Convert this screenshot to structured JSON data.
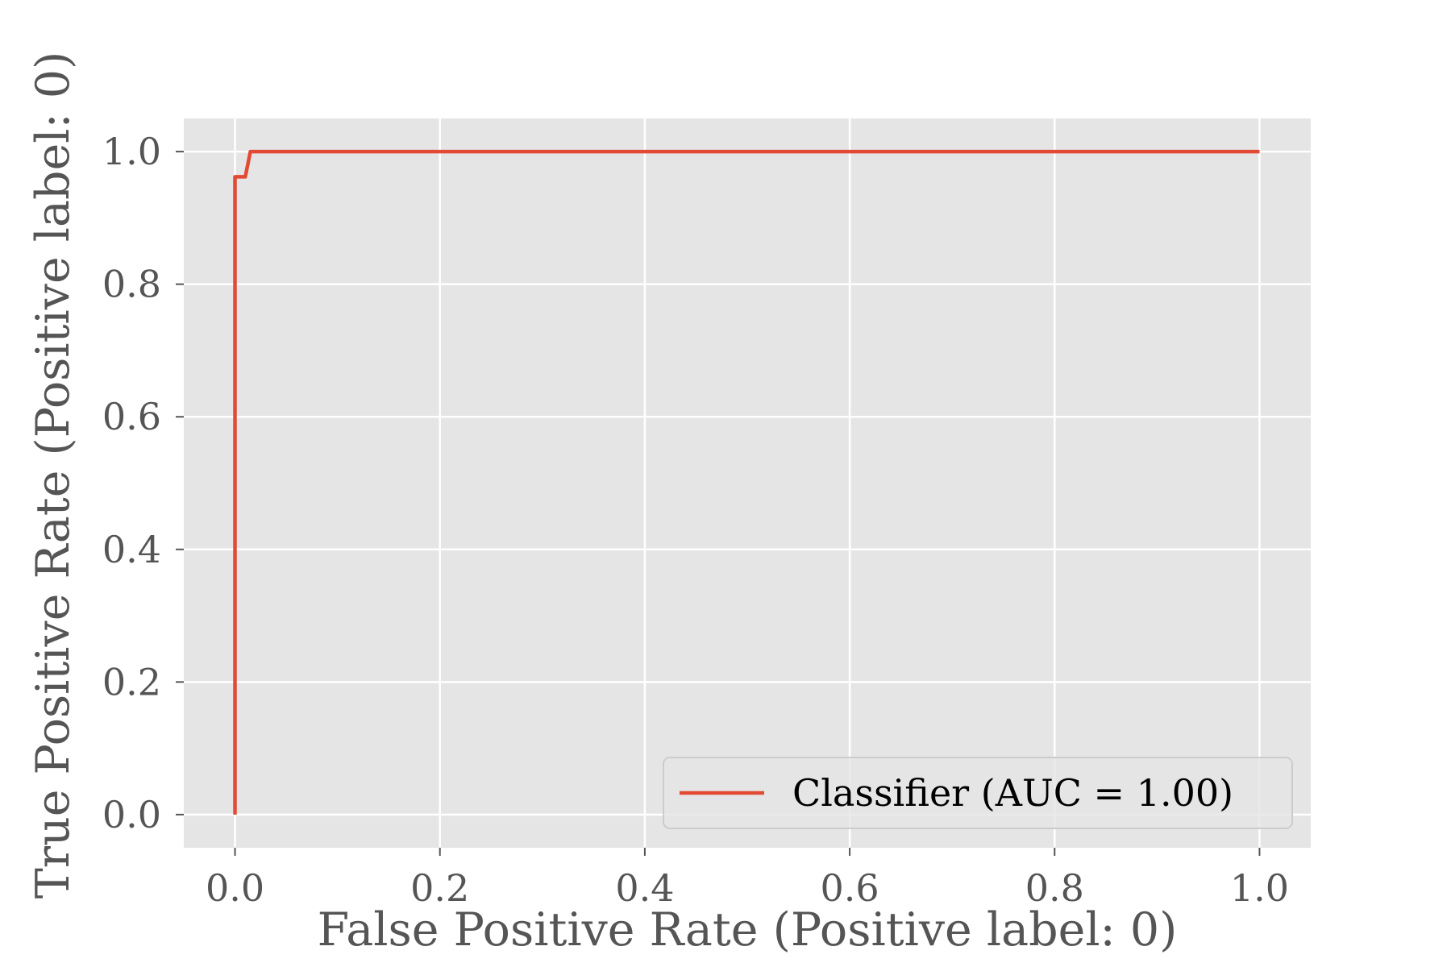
{
  "chart_data": {
    "type": "line",
    "title": "",
    "xlabel": "False Positive Rate (Positive label: 0)",
    "ylabel": "True Positive Rate (Positive label: 0)",
    "xlim": [
      -0.05,
      1.05
    ],
    "ylim": [
      -0.05,
      1.05
    ],
    "xticks": [
      "0.0",
      "0.2",
      "0.4",
      "0.6",
      "0.8",
      "1.0"
    ],
    "yticks": [
      "0.0",
      "0.2",
      "0.4",
      "0.6",
      "0.8",
      "1.0"
    ],
    "grid": true,
    "legend_position": "lower-right",
    "series": [
      {
        "name": "Classifier (AUC = 1.00)",
        "color": "#E24A33",
        "x": [
          0.0,
          0.0,
          0.0,
          0.01,
          0.015,
          1.0
        ],
        "y": [
          0.0,
          0.5,
          0.962,
          0.962,
          1.0,
          1.0
        ]
      }
    ]
  }
}
